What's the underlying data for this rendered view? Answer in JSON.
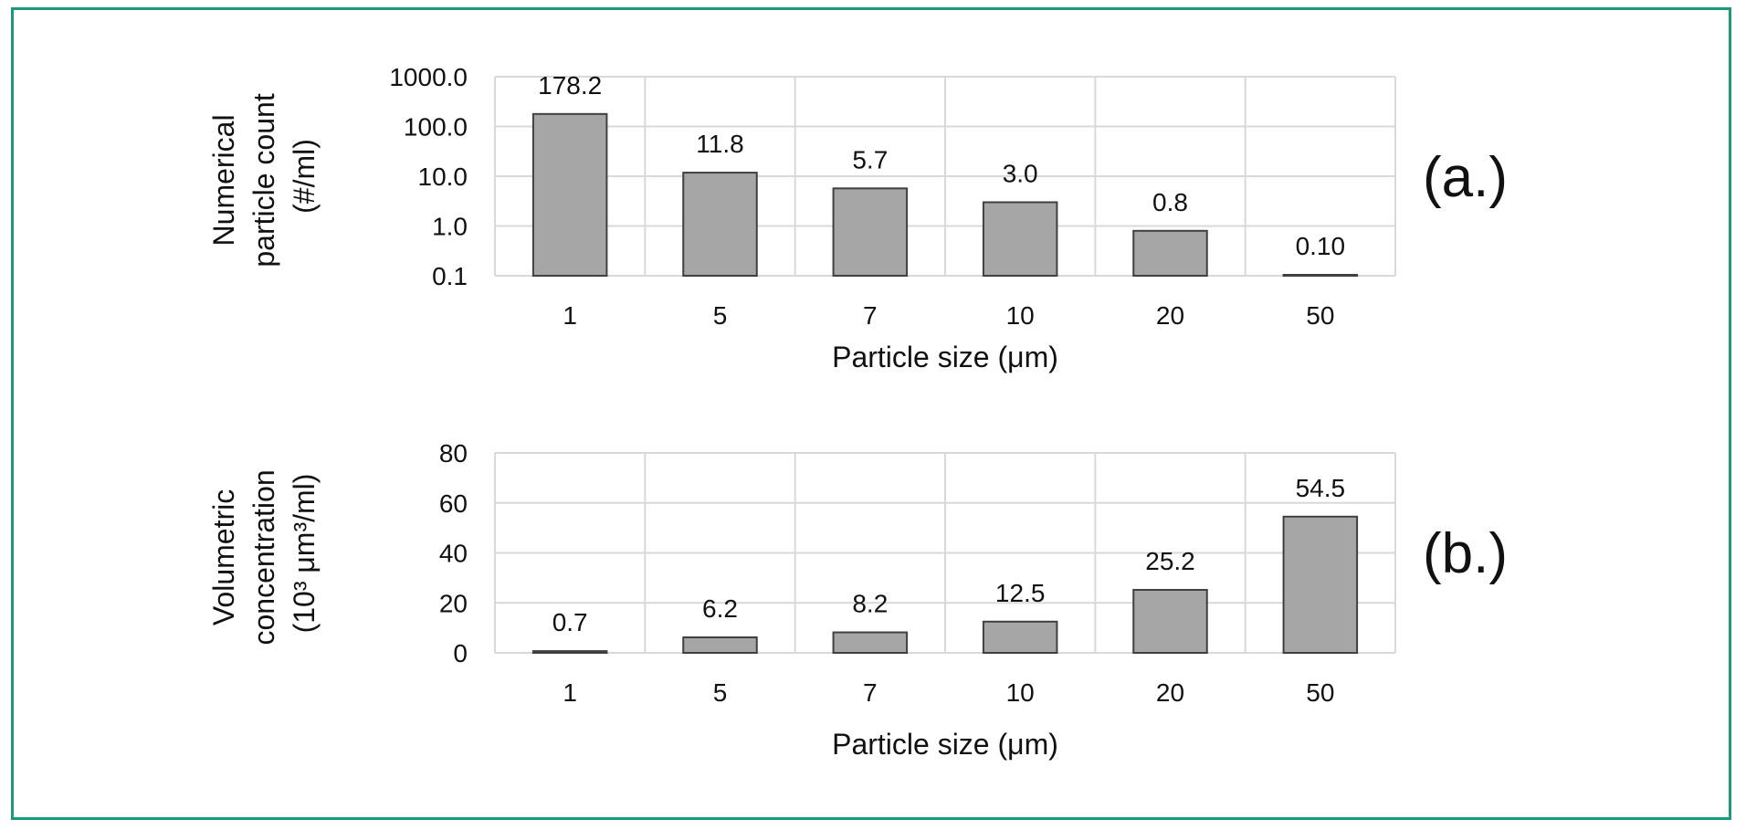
{
  "colors": {
    "frame": "#1a9a7a",
    "bar_fill": "#a6a6a6",
    "bar_stroke": "#404040",
    "grid": "#d9d9d9"
  },
  "chart_data": [
    {
      "type": "bar",
      "panel_label": "(a.)",
      "categories": [
        "1",
        "5",
        "7",
        "10",
        "20",
        "50"
      ],
      "values": [
        178.2,
        11.8,
        5.7,
        3.0,
        0.8,
        0.1
      ],
      "data_labels": [
        "178.2",
        "11.8",
        "5.7",
        "3.0",
        "0.8",
        "0.10"
      ],
      "xlabel": "Particle size (μm)",
      "ylabel_lines": [
        "Numerical",
        "particle count",
        "(#/ml)"
      ],
      "yscale": "log",
      "ylim": [
        0.1,
        1000
      ],
      "yticks": [
        0.1,
        1,
        10,
        100,
        1000
      ],
      "ytick_labels": [
        "0.1",
        "1.0",
        "10.0",
        "100.0",
        "1000.0"
      ],
      "grid": true
    },
    {
      "type": "bar",
      "panel_label": "(b.)",
      "categories": [
        "1",
        "5",
        "7",
        "10",
        "20",
        "50"
      ],
      "values": [
        0.7,
        6.2,
        8.2,
        12.5,
        25.2,
        54.5
      ],
      "data_labels": [
        "0.7",
        "6.2",
        "8.2",
        "12.5",
        "25.2",
        "54.5"
      ],
      "xlabel": "Particle size (μm)",
      "ylabel_lines": [
        "Volumetric",
        "concentration",
        "(10³ μm³/ml)"
      ],
      "yscale": "linear",
      "ylim": [
        0,
        80
      ],
      "yticks": [
        0,
        20,
        40,
        60,
        80
      ],
      "ytick_labels": [
        "0",
        "20",
        "40",
        "60",
        "80"
      ],
      "grid": true
    }
  ]
}
